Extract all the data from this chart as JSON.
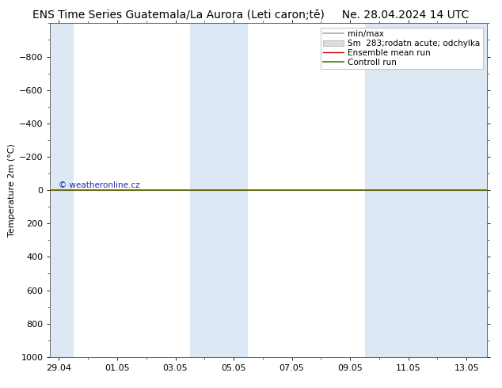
{
  "title": "ENS Time Series Guatemala/La Aurora (Leti caron;tě)",
  "date_str": "Ne. 28.04.2024 14 UTC",
  "ylabel": "Temperature 2m (°C)",
  "watermark": "© weatheronline.cz",
  "ylim_bottom": 1000,
  "ylim_top": -1000,
  "yticks": [
    -800,
    -600,
    -400,
    -200,
    0,
    200,
    400,
    600,
    800,
    1000
  ],
  "x_labels": [
    "29.04",
    "01.05",
    "03.05",
    "05.05",
    "07.05",
    "09.05",
    "11.05",
    "13.05"
  ],
  "x_tick_pos": [
    0,
    2,
    4,
    6,
    8,
    10,
    12,
    14
  ],
  "x_min": -0.3,
  "x_max": 14.7,
  "shaded_regions": [
    {
      "x_start": -0.3,
      "x_end": 0.5,
      "color": "#dde8f5"
    },
    {
      "x_start": 4.5,
      "x_end": 5.5,
      "color": "#dde8f5"
    },
    {
      "x_start": 5.5,
      "x_end": 6.5,
      "color": "#dde8f5"
    },
    {
      "x_start": 10.5,
      "x_end": 11.5,
      "color": "#dde8f5"
    },
    {
      "x_start": 11.5,
      "x_end": 14.7,
      "color": "#dde8f5"
    }
  ],
  "control_run_color": "#4a7a00",
  "ensemble_mean_color": "#cc0000",
  "minmax_color": "#aaaaaa",
  "spread_color": "#cccccc",
  "background_color": "#ffffff",
  "plot_bg_color": "#ffffff",
  "title_fontsize": 10,
  "axis_fontsize": 8,
  "tick_fontsize": 8,
  "legend_fontsize": 7.5
}
